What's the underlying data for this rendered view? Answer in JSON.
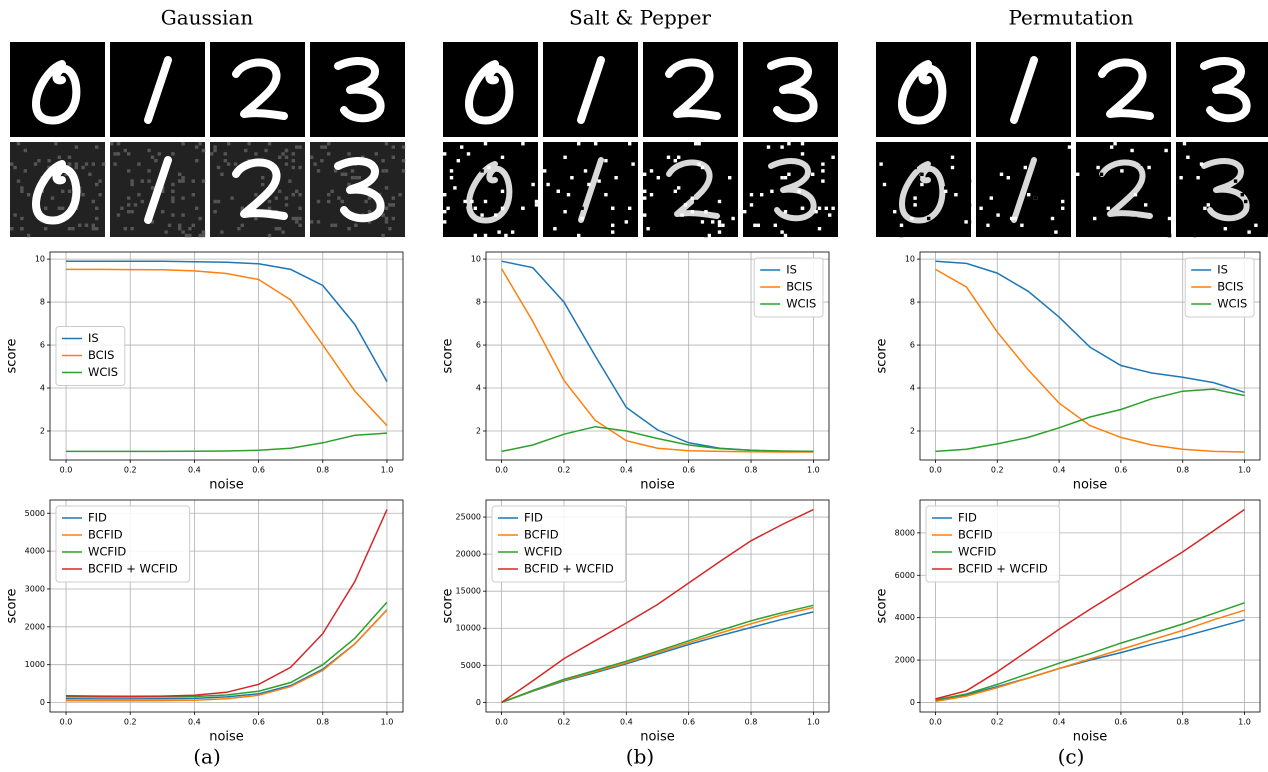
{
  "panels": [
    {
      "title": "Gaussian",
      "caption": "(a)"
    },
    {
      "title": "Salt & Pepper",
      "caption": "(b)"
    },
    {
      "title": "Permutation",
      "caption": "(c)"
    }
  ],
  "chart_data": [
    {
      "type": "line",
      "xlabel": "noise",
      "ylabel": "score",
      "grid": true,
      "legend": "center left",
      "x": [
        0,
        0.1,
        0.2,
        0.3,
        0.4,
        0.5,
        0.6,
        0.7,
        0.8,
        0.9,
        1.0
      ],
      "xlim": [
        -0.05,
        1.05
      ],
      "ylim": [
        0.65,
        10.33
      ],
      "xticks": [
        {
          "value": 0,
          "label": "0.0"
        },
        {
          "value": 0.2,
          "label": "0.2"
        },
        {
          "value": 0.4,
          "label": "0.4"
        },
        {
          "value": 0.6,
          "label": "0.6"
        },
        {
          "value": 0.8,
          "label": "0.8"
        },
        {
          "value": 1.0,
          "label": "1.0"
        }
      ],
      "yticks": [
        2,
        4,
        6,
        8,
        10
      ],
      "series": [
        {
          "name": "IS",
          "color": "#1f77b4",
          "values": [
            9.9,
            9.9,
            9.9,
            9.9,
            9.88,
            9.85,
            9.78,
            9.52,
            8.77,
            6.95,
            4.3
          ]
        },
        {
          "name": "BCIS",
          "color": "#ff7f0e",
          "values": [
            9.52,
            9.52,
            9.51,
            9.5,
            9.45,
            9.33,
            9.05,
            8.1,
            6.0,
            3.85,
            2.25
          ]
        },
        {
          "name": "WCIS",
          "color": "#2ca02c",
          "values": [
            1.05,
            1.05,
            1.05,
            1.05,
            1.06,
            1.07,
            1.1,
            1.2,
            1.45,
            1.8,
            1.9
          ]
        }
      ]
    },
    {
      "type": "line",
      "xlabel": "noise",
      "ylabel": "score",
      "grid": true,
      "legend": "upper right",
      "x": [
        0,
        0.1,
        0.2,
        0.3,
        0.4,
        0.5,
        0.6,
        0.7,
        0.8,
        0.9,
        1.0
      ],
      "xlim": [
        -0.05,
        1.05
      ],
      "ylim": [
        0.65,
        10.33
      ],
      "xticks": [
        {
          "value": 0,
          "label": "0.0"
        },
        {
          "value": 0.2,
          "label": "0.2"
        },
        {
          "value": 0.4,
          "label": "0.4"
        },
        {
          "value": 0.6,
          "label": "0.6"
        },
        {
          "value": 0.8,
          "label": "0.8"
        },
        {
          "value": 1.0,
          "label": "1.0"
        }
      ],
      "yticks": [
        2,
        4,
        6,
        8,
        10
      ],
      "series": [
        {
          "name": "IS",
          "color": "#1f77b4",
          "values": [
            9.9,
            9.6,
            8.0,
            5.5,
            3.1,
            2.05,
            1.45,
            1.2,
            1.1,
            1.05,
            1.05
          ]
        },
        {
          "name": "BCIS",
          "color": "#ff7f0e",
          "values": [
            9.55,
            7.1,
            4.35,
            2.5,
            1.55,
            1.2,
            1.08,
            1.05,
            1.03,
            1.02,
            1.02
          ]
        },
        {
          "name": "WCIS",
          "color": "#2ca02c",
          "values": [
            1.05,
            1.35,
            1.85,
            2.2,
            2.0,
            1.65,
            1.35,
            1.18,
            1.1,
            1.07,
            1.05
          ]
        }
      ]
    },
    {
      "type": "line",
      "xlabel": "noise",
      "ylabel": "score",
      "grid": true,
      "legend": "upper right",
      "x": [
        0,
        0.1,
        0.2,
        0.3,
        0.4,
        0.5,
        0.6,
        0.7,
        0.8,
        0.9,
        1.0
      ],
      "xlim": [
        -0.05,
        1.05
      ],
      "ylim": [
        0.65,
        10.33
      ],
      "xticks": [
        {
          "value": 0,
          "label": "0.0"
        },
        {
          "value": 0.2,
          "label": "0.2"
        },
        {
          "value": 0.4,
          "label": "0.4"
        },
        {
          "value": 0.6,
          "label": "0.6"
        },
        {
          "value": 0.8,
          "label": "0.8"
        },
        {
          "value": 1.0,
          "label": "1.0"
        }
      ],
      "yticks": [
        2,
        4,
        6,
        8,
        10
      ],
      "series": [
        {
          "name": "IS",
          "color": "#1f77b4",
          "values": [
            9.9,
            9.8,
            9.35,
            8.5,
            7.3,
            5.9,
            5.05,
            4.7,
            4.5,
            4.25,
            3.8
          ]
        },
        {
          "name": "BCIS",
          "color": "#ff7f0e",
          "values": [
            9.52,
            8.7,
            6.6,
            4.85,
            3.3,
            2.25,
            1.7,
            1.35,
            1.15,
            1.05,
            1.02
          ]
        },
        {
          "name": "WCIS",
          "color": "#2ca02c",
          "values": [
            1.05,
            1.15,
            1.4,
            1.7,
            2.15,
            2.65,
            3.0,
            3.5,
            3.85,
            3.95,
            3.65
          ]
        }
      ]
    },
    {
      "type": "line",
      "xlabel": "noise",
      "ylabel": "score",
      "grid": true,
      "legend": "upper left",
      "x": [
        0,
        0.1,
        0.2,
        0.3,
        0.4,
        0.5,
        0.6,
        0.7,
        0.8,
        0.9,
        1.0
      ],
      "xlim": [
        -0.05,
        1.05
      ],
      "ylim": [
        -250,
        5350
      ],
      "xticks": [
        {
          "value": 0,
          "label": "0.0"
        },
        {
          "value": 0.2,
          "label": "0.2"
        },
        {
          "value": 0.4,
          "label": "0.4"
        },
        {
          "value": 0.6,
          "label": "0.6"
        },
        {
          "value": 0.8,
          "label": "0.8"
        },
        {
          "value": 1.0,
          "label": "1.0"
        }
      ],
      "yticks": [
        0,
        1000,
        2000,
        3000,
        4000,
        5000
      ],
      "series": [
        {
          "name": "FID",
          "color": "#1f77b4",
          "values": [
            100,
            95,
            95,
            100,
            110,
            150,
            230,
            450,
            880,
            1550,
            2450
          ]
        },
        {
          "name": "BCFID",
          "color": "#ff7f0e",
          "values": [
            50,
            45,
            45,
            50,
            60,
            100,
            190,
            420,
            850,
            1550,
            2450
          ]
        },
        {
          "name": "WCFID",
          "color": "#2ca02c",
          "values": [
            150,
            145,
            145,
            150,
            160,
            200,
            300,
            530,
            1000,
            1700,
            2650
          ]
        },
        {
          "name": "BCFID + WCFID",
          "color": "#d62728",
          "values": [
            180,
            170,
            165,
            170,
            190,
            270,
            480,
            930,
            1820,
            3200,
            5100
          ]
        }
      ]
    },
    {
      "type": "line",
      "xlabel": "noise",
      "ylabel": "score",
      "grid": true,
      "legend": "upper left",
      "x": [
        0,
        0.1,
        0.2,
        0.3,
        0.4,
        0.5,
        0.6,
        0.7,
        0.8,
        0.9,
        1.0
      ],
      "xlim": [
        -0.05,
        1.05
      ],
      "ylim": [
        -1300,
        27300
      ],
      "xticks": [
        {
          "value": 0,
          "label": "0.0"
        },
        {
          "value": 0.2,
          "label": "0.2"
        },
        {
          "value": 0.4,
          "label": "0.4"
        },
        {
          "value": 0.6,
          "label": "0.6"
        },
        {
          "value": 0.8,
          "label": "0.8"
        },
        {
          "value": 1.0,
          "label": "1.0"
        }
      ],
      "yticks": [
        0,
        5000,
        10000,
        15000,
        20000,
        25000
      ],
      "series": [
        {
          "name": "FID",
          "color": "#1f77b4",
          "values": [
            0,
            1500,
            2900,
            4000,
            5200,
            6500,
            7800,
            9000,
            10100,
            11200,
            12200
          ]
        },
        {
          "name": "BCFID",
          "color": "#ff7f0e",
          "values": [
            0,
            1550,
            3000,
            4150,
            5350,
            6700,
            8050,
            9350,
            10600,
            11800,
            12800
          ]
        },
        {
          "name": "WCFID",
          "color": "#2ca02c",
          "values": [
            0,
            1600,
            3100,
            4300,
            5550,
            6900,
            8300,
            9700,
            11000,
            12100,
            13100
          ]
        },
        {
          "name": "BCFID + WCFID",
          "color": "#d62728",
          "values": [
            0,
            2900,
            5900,
            8300,
            10700,
            13200,
            16100,
            19000,
            21800,
            24000,
            26000
          ]
        }
      ]
    },
    {
      "type": "line",
      "xlabel": "noise",
      "ylabel": "score",
      "grid": true,
      "legend": "upper left",
      "x": [
        0,
        0.1,
        0.2,
        0.3,
        0.4,
        0.5,
        0.6,
        0.7,
        0.8,
        0.9,
        1.0
      ],
      "xlim": [
        -0.05,
        1.05
      ],
      "ylim": [
        -450,
        9550
      ],
      "xticks": [
        {
          "value": 0,
          "label": "0.0"
        },
        {
          "value": 0.2,
          "label": "0.2"
        },
        {
          "value": 0.4,
          "label": "0.4"
        },
        {
          "value": 0.6,
          "label": "0.6"
        },
        {
          "value": 0.8,
          "label": "0.8"
        },
        {
          "value": 1.0,
          "label": "1.0"
        }
      ],
      "yticks": [
        0,
        2000,
        4000,
        6000,
        8000
      ],
      "series": [
        {
          "name": "FID",
          "color": "#1f77b4",
          "values": [
            100,
            350,
            750,
            1150,
            1600,
            2000,
            2350,
            2750,
            3100,
            3500,
            3900
          ]
        },
        {
          "name": "BCFID",
          "color": "#ff7f0e",
          "values": [
            50,
            300,
            700,
            1150,
            1600,
            2050,
            2500,
            2950,
            3400,
            3900,
            4350
          ]
        },
        {
          "name": "WCFID",
          "color": "#2ca02c",
          "values": [
            120,
            400,
            850,
            1350,
            1850,
            2300,
            2800,
            3250,
            3700,
            4200,
            4700
          ]
        },
        {
          "name": "BCFID + WCFID",
          "color": "#d62728",
          "values": [
            170,
            550,
            1450,
            2450,
            3450,
            4400,
            5300,
            6200,
            7100,
            8100,
            9100
          ]
        }
      ]
    }
  ]
}
